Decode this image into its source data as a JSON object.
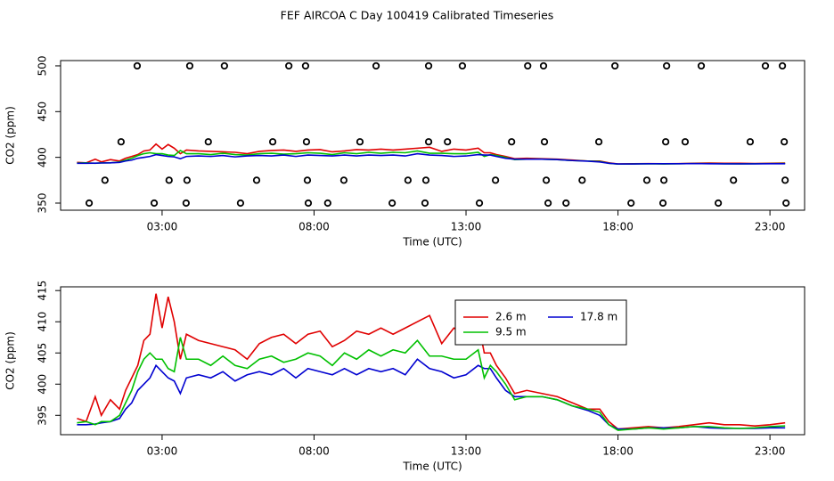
{
  "chart_data": [
    {
      "type": "line",
      "title": "FEF AIRCOA C  Day 100419  Calibrated Timeseries",
      "xlabel": "Time (UTC)",
      "ylabel": "CO2 (ppm)",
      "xlim": [
        -0.34,
        24.14
      ],
      "ylim": [
        342.2,
        505.8
      ],
      "xticks": [
        {
          "value": 3,
          "label": "03:00"
        },
        {
          "value": 8,
          "label": "08:00"
        },
        {
          "value": 13,
          "label": "13:00"
        },
        {
          "value": 18,
          "label": "18:00"
        },
        {
          "value": 23,
          "label": "23:00"
        }
      ],
      "yticks": [
        350,
        400,
        450,
        500
      ],
      "grid": false,
      "legend": false,
      "x": [
        0.2,
        0.5,
        0.8,
        1.0,
        1.3,
        1.6,
        1.8,
        2.0,
        2.2,
        2.4,
        2.6,
        2.8,
        3.0,
        3.2,
        3.4,
        3.6,
        3.8,
        4.2,
        4.6,
        5.0,
        5.4,
        5.8,
        6.2,
        6.6,
        7.0,
        7.4,
        7.8,
        8.2,
        8.6,
        9.0,
        9.4,
        9.8,
        10.2,
        10.6,
        11.0,
        11.4,
        11.8,
        12.2,
        12.6,
        13.0,
        13.4,
        13.6,
        13.8,
        14.0,
        14.3,
        14.6,
        15.0,
        15.5,
        16.0,
        16.5,
        17.0,
        17.4,
        17.7,
        18.0,
        18.5,
        19.0,
        19.5,
        20.0,
        20.5,
        21.0,
        21.5,
        22.0,
        22.5,
        23.0,
        23.5
      ],
      "series": [
        {
          "name": "2.6 m",
          "color": "#e00000",
          "values": [
            394.5,
            394,
            398,
            395,
            397.5,
            396,
            399,
            401,
            403,
            407,
            408,
            414.5,
            409,
            414,
            410,
            404,
            408,
            407,
            406.5,
            406,
            405.5,
            404,
            406.5,
            407.5,
            408,
            406.5,
            408,
            408.5,
            406,
            407,
            408.5,
            408,
            409,
            408,
            409,
            410,
            411,
            406.5,
            409,
            408,
            410,
            405,
            405,
            403,
            401,
            398.5,
            399,
            398.5,
            398,
            397,
            396,
            396,
            394,
            392.8,
            393,
            393.2,
            393,
            393.2,
            393.5,
            393.8,
            393.5,
            393.5,
            393.3,
            393.5,
            393.8
          ]
        },
        {
          "name": "9.5 m",
          "color": "#00c000",
          "values": [
            393.8,
            394,
            393.5,
            394,
            394,
            395,
            397,
            399,
            402,
            404,
            405,
            404,
            404,
            402.5,
            402,
            407.5,
            404,
            404,
            403,
            404.5,
            403,
            402.5,
            404,
            404.5,
            403.5,
            404,
            405,
            404.5,
            403,
            405,
            404,
            405.5,
            404.5,
            405.5,
            405,
            407,
            404.5,
            404.5,
            404,
            404,
            405.5,
            401,
            403,
            402,
            400,
            397.5,
            398,
            398,
            397.5,
            396.5,
            396,
            395.5,
            393.5,
            392.6,
            392.8,
            393,
            392.8,
            393,
            393.2,
            393.2,
            393,
            392.9,
            393,
            393.2,
            393.3
          ]
        },
        {
          "name": "17.8 m",
          "color": "#0000d0",
          "values": [
            393.5,
            393.5,
            393.6,
            393.8,
            394,
            394.5,
            396,
            397,
            399,
            400,
            401,
            403,
            402,
            401,
            400.5,
            398.5,
            401,
            401.5,
            401,
            402,
            400.5,
            401.5,
            402,
            401.5,
            402.5,
            401,
            402.5,
            402,
            401.5,
            402.5,
            401.5,
            402.5,
            402,
            402.5,
            401.5,
            404,
            402.5,
            402,
            401,
            401.5,
            403,
            402.5,
            402.5,
            401,
            399,
            398,
            398,
            398,
            397.5,
            396.5,
            395.8,
            395,
            393.5,
            392.8,
            392.8,
            393,
            393,
            393,
            393.2,
            393,
            392.9,
            392.9,
            392.9,
            393,
            393
          ]
        }
      ],
      "points": {
        "color": "#000000",
        "x": [
          2.18,
          3.91,
          5.05,
          7.17,
          7.72,
          10.04,
          11.77,
          12.88,
          15.03,
          15.55,
          17.9,
          19.6,
          20.74,
          22.85,
          23.41,
          1.65,
          4.52,
          6.64,
          7.75,
          9.51,
          11.77,
          12.39,
          14.5,
          15.58,
          17.37,
          19.57,
          20.21,
          22.35,
          23.47,
          1.12,
          3.23,
          3.82,
          6.11,
          7.78,
          8.98,
          11.09,
          11.68,
          13.97,
          15.64,
          16.82,
          18.95,
          19.51,
          21.8,
          23.5,
          0.6,
          2.74,
          3.79,
          5.58,
          7.81,
          8.45,
          10.57,
          11.65,
          13.44,
          15.7,
          16.29,
          18.43,
          19.48,
          21.3,
          23.53
        ],
        "values": [
          500,
          500,
          500,
          500,
          500,
          500,
          500,
          500,
          500,
          500,
          500,
          500,
          500,
          500,
          500,
          417,
          417,
          417,
          417,
          417,
          417,
          417,
          417,
          417,
          417,
          417,
          417,
          417,
          417,
          375,
          375,
          375,
          375,
          375,
          375,
          375,
          375,
          375,
          375,
          375,
          375,
          375,
          375,
          375,
          350,
          350,
          350,
          350,
          350,
          350,
          350,
          350,
          350,
          350,
          350,
          350,
          350,
          350,
          350
        ]
      }
    },
    {
      "type": "line",
      "xlabel": "Time (UTC)",
      "ylabel": "CO2 (ppm)",
      "xlim": [
        -0.34,
        24.14
      ],
      "ylim": [
        391.9,
        415.6
      ],
      "xticks": [
        {
          "value": 3,
          "label": "03:00"
        },
        {
          "value": 8,
          "label": "08:00"
        },
        {
          "value": 13,
          "label": "13:00"
        },
        {
          "value": 18,
          "label": "18:00"
        },
        {
          "value": 23,
          "label": "23:00"
        }
      ],
      "yticks": [
        395,
        400,
        405,
        410,
        415
      ],
      "grid": false,
      "legend": true,
      "x": [
        0.2,
        0.5,
        0.8,
        1.0,
        1.3,
        1.6,
        1.8,
        2.0,
        2.2,
        2.4,
        2.6,
        2.8,
        3.0,
        3.2,
        3.4,
        3.6,
        3.8,
        4.2,
        4.6,
        5.0,
        5.4,
        5.8,
        6.2,
        6.6,
        7.0,
        7.4,
        7.8,
        8.2,
        8.6,
        9.0,
        9.4,
        9.8,
        10.2,
        10.6,
        11.0,
        11.4,
        11.8,
        12.2,
        12.6,
        13.0,
        13.4,
        13.6,
        13.8,
        14.0,
        14.3,
        14.6,
        15.0,
        15.5,
        16.0,
        16.5,
        17.0,
        17.4,
        17.7,
        18.0,
        18.5,
        19.0,
        19.5,
        20.0,
        20.5,
        21.0,
        21.5,
        22.0,
        22.5,
        23.0,
        23.5
      ],
      "series": [
        {
          "name": "2.6 m",
          "color": "#e00000",
          "values": [
            394.5,
            394,
            398,
            395,
            397.5,
            396,
            399,
            401,
            403,
            407,
            408,
            414.5,
            409,
            414,
            410,
            404,
            408,
            407,
            406.5,
            406,
            405.5,
            404,
            406.5,
            407.5,
            408,
            406.5,
            408,
            408.5,
            406,
            407,
            408.5,
            408,
            409,
            408,
            409,
            410,
            411,
            406.5,
            409,
            408,
            410,
            405,
            405,
            403,
            401,
            398.5,
            399,
            398.5,
            398,
            397,
            396,
            396,
            394,
            392.8,
            393,
            393.2,
            393,
            393.2,
            393.5,
            393.8,
            393.5,
            393.5,
            393.3,
            393.5,
            393.8
          ]
        },
        {
          "name": "17.8 m",
          "color": "#0000d0",
          "values": [
            393.5,
            393.5,
            393.6,
            393.8,
            394,
            394.5,
            396,
            397,
            399,
            400,
            401,
            403,
            402,
            401,
            400.5,
            398.5,
            401,
            401.5,
            401,
            402,
            400.5,
            401.5,
            402,
            401.5,
            402.5,
            401,
            402.5,
            402,
            401.5,
            402.5,
            401.5,
            402.5,
            402,
            402.5,
            401.5,
            404,
            402.5,
            402,
            401,
            401.5,
            403,
            402.5,
            402.5,
            401,
            399,
            398,
            398,
            398,
            397.5,
            396.5,
            395.8,
            395,
            393.5,
            392.8,
            392.8,
            393,
            393,
            393,
            393.2,
            393,
            392.9,
            392.9,
            392.9,
            393,
            393
          ]
        },
        {
          "name": "9.5 m",
          "color": "#00c000",
          "values": [
            393.8,
            394,
            393.5,
            394,
            394,
            395,
            397,
            399,
            402,
            404,
            405,
            404,
            404,
            402.5,
            402,
            407.5,
            404,
            404,
            403,
            404.5,
            403,
            402.5,
            404,
            404.5,
            403.5,
            404,
            405,
            404.5,
            403,
            405,
            404,
            405.5,
            404.5,
            405.5,
            405,
            407,
            404.5,
            404.5,
            404,
            404,
            405.5,
            401,
            403,
            402,
            400,
            397.5,
            398,
            398,
            397.5,
            396.5,
            396,
            395.5,
            393.5,
            392.6,
            392.8,
            393,
            392.8,
            393,
            393.2,
            393.2,
            393,
            392.9,
            393,
            393.2,
            393.3
          ]
        }
      ]
    }
  ]
}
